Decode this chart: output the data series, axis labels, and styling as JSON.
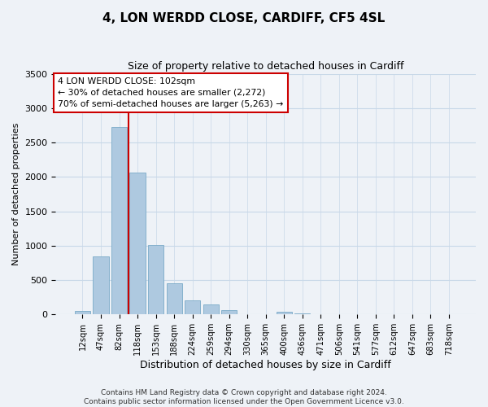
{
  "title": "4, LON WERDD CLOSE, CARDIFF, CF5 4SL",
  "subtitle": "Size of property relative to detached houses in Cardiff",
  "xlabel": "Distribution of detached houses by size in Cardiff",
  "ylabel": "Number of detached properties",
  "bar_labels": [
    "12sqm",
    "47sqm",
    "82sqm",
    "118sqm",
    "153sqm",
    "188sqm",
    "224sqm",
    "259sqm",
    "294sqm",
    "330sqm",
    "365sqm",
    "400sqm",
    "436sqm",
    "471sqm",
    "506sqm",
    "541sqm",
    "577sqm",
    "612sqm",
    "647sqm",
    "683sqm",
    "718sqm"
  ],
  "bar_values": [
    55,
    850,
    2720,
    2060,
    1010,
    455,
    210,
    145,
    60,
    0,
    0,
    35,
    20,
    0,
    0,
    0,
    0,
    0,
    0,
    0,
    0
  ],
  "bar_color": "#aec9e0",
  "bar_edge_color": "#7aaac8",
  "vline_color": "#cc0000",
  "annotation_line1": "4 LON WERDD CLOSE: 102sqm",
  "annotation_line2": "← 30% of detached houses are smaller (2,272)",
  "annotation_line3": "70% of semi-detached houses are larger (5,263) →",
  "annotation_box_color": "#ffffff",
  "annotation_box_edge": "#cc0000",
  "ylim": [
    0,
    3500
  ],
  "yticks": [
    0,
    500,
    1000,
    1500,
    2000,
    2500,
    3000,
    3500
  ],
  "footer1": "Contains HM Land Registry data © Crown copyright and database right 2024.",
  "footer2": "Contains public sector information licensed under the Open Government Licence v3.0.",
  "bg_color": "#eef2f7",
  "plot_bg_color": "#eef2f7",
  "grid_color": "#c8d8e8"
}
